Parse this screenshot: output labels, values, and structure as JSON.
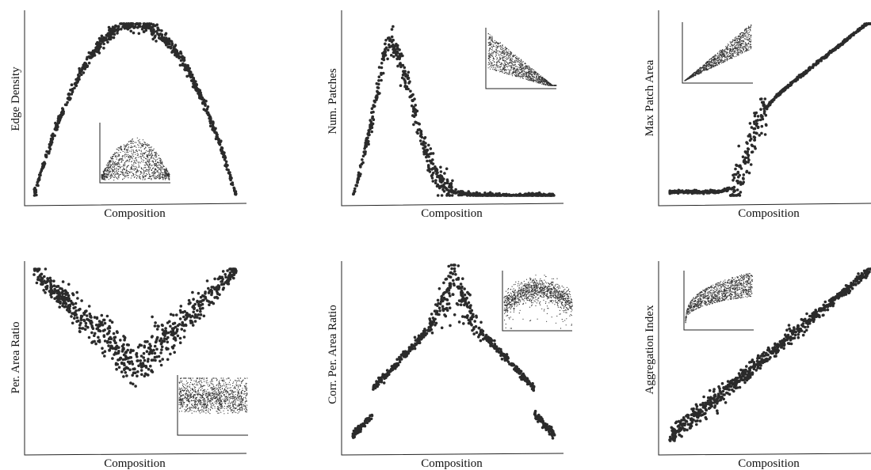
{
  "figure": {
    "panels": [
      {
        "id": "edge-density",
        "ylabel": "Edge Density",
        "xlabel": "Composition"
      },
      {
        "id": "num-patches",
        "ylabel": "Num. Patches",
        "xlabel": "Composition"
      },
      {
        "id": "max-patch-area",
        "ylabel": "Max Patch Area",
        "xlabel": "Composition"
      },
      {
        "id": "per-area-ratio",
        "ylabel": "Per. Area Ratio",
        "xlabel": "Composition"
      },
      {
        "id": "corr-per-area-ratio",
        "ylabel": "Corr. Per. Area Ratio",
        "xlabel": "Composition"
      },
      {
        "id": "aggregation-index",
        "ylabel": "Aggregation Index",
        "xlabel": "Composition"
      }
    ]
  },
  "chart_data": [
    {
      "type": "scatter",
      "ylabel": "Edge Density",
      "xlabel": "Composition",
      "xlim": [
        0,
        1
      ],
      "ylim": [
        0,
        1
      ],
      "shape": "inverted parabola peaking at composition 0.5",
      "inset": {
        "type": "scatter",
        "shape": "broad hump"
      }
    },
    {
      "type": "scatter",
      "ylabel": "Num. Patches",
      "xlabel": "Composition",
      "xlim": [
        0,
        1
      ],
      "ylim": [
        0,
        1
      ],
      "shape": "sharp rise to peak near composition 0.15 then decay to near zero",
      "inset": {
        "type": "scatter",
        "shape": "triangular band"
      }
    },
    {
      "type": "scatter",
      "ylabel": "Max Patch Area",
      "xlabel": "Composition",
      "xlim": [
        0,
        1
      ],
      "ylim": [
        0,
        1
      ],
      "shape": "flat near zero then sigmoid jump near composition 0.4 and linear increase",
      "inset": {
        "type": "scatter",
        "shape": "linear wedge"
      }
    },
    {
      "type": "scatter",
      "ylabel": "Per. Area Ratio",
      "xlabel": "Composition",
      "xlim": [
        0,
        1
      ],
      "ylim": [
        0,
        1
      ],
      "shape": "V-shape with minimum at composition 0.5",
      "inset": {
        "type": "scatter",
        "shape": "horizontal band"
      }
    },
    {
      "type": "scatter",
      "ylabel": "Corr. Per. Area Ratio",
      "xlabel": "Composition",
      "xlim": [
        0,
        1
      ],
      "ylim": [
        0,
        1
      ],
      "shape": "peak at composition 0.5 with tails",
      "inset": {
        "type": "scatter",
        "shape": "dome band"
      }
    },
    {
      "type": "scatter",
      "ylabel": "Aggregation Index",
      "xlabel": "Composition",
      "xlim": [
        0,
        1
      ],
      "ylim": [
        0,
        1
      ],
      "shape": "monotonic linear increase",
      "inset": {
        "type": "scatter",
        "shape": "saturating curve"
      }
    }
  ]
}
